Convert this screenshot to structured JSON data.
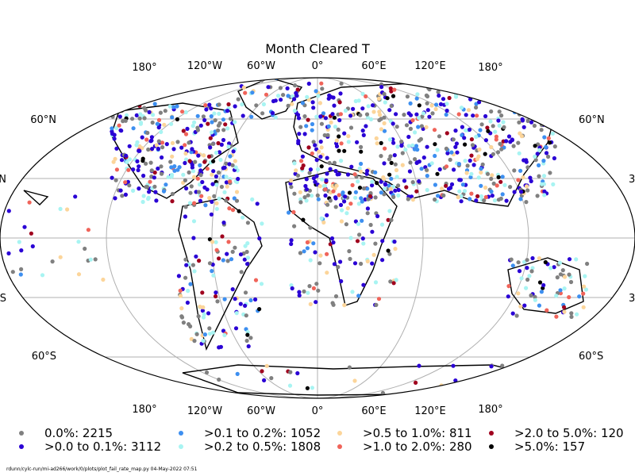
{
  "title": "Month Cleared T",
  "lon_labels_top": [
    "180°",
    "120°W",
    "60°W",
    "0°",
    "60°E",
    "120°E",
    "180°"
  ],
  "lon_labels_bottom": [
    "180°",
    "120°W",
    "60°W",
    "0°",
    "60°E",
    "120°E",
    "180°"
  ],
  "lat_labels_left": [
    "60°N",
    "N",
    "S",
    "60°S"
  ],
  "lat_labels_right": [
    "60°N",
    "3",
    "3",
    "60°S"
  ],
  "legend": [
    {
      "label": "0.0%: 2215",
      "color": "#808080"
    },
    {
      "label": ">0.0 to 0.1%: 3112",
      "color": "#2a00d5"
    },
    {
      "label": ">0.1 to 0.2%: 1052",
      "color": "#3d8ff0"
    },
    {
      "label": ">0.2 to 0.5%: 1808",
      "color": "#a8f4f2"
    },
    {
      "label": ">0.5 to 1.0%: 811",
      "color": "#fcd59a"
    },
    {
      "label": ">1.0 to 2.0%: 280",
      "color": "#f0645a"
    },
    {
      "label": ">2.0 to 5.0%: 120",
      "color": "#a0001e"
    },
    {
      "label": ">5.0%: 157",
      "color": "#000000"
    }
  ],
  "footer": "rdunn/cylc-run/mi-ad266/work/0/plots/plot_fail_rate_map.py   04-May-2022 07:51"
}
